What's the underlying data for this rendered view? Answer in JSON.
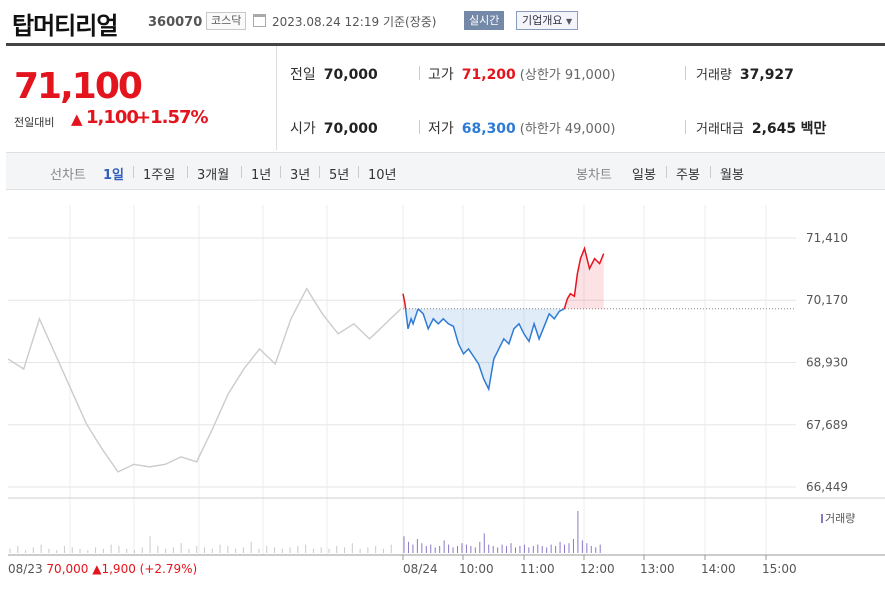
{
  "header": {
    "name": "탑머티리얼",
    "code": "360070",
    "market": "코스닥",
    "datetime": "2023.08.24 12:19",
    "basis": "기준(장중)",
    "realtime_button": "실시간",
    "company_info_button": "기업개요"
  },
  "price": {
    "current": "71,100",
    "change_label": "전일대비",
    "change_value": "1,100",
    "change_pct": "+1.57%"
  },
  "stats": {
    "prev_close": {
      "label": "전일",
      "value": "70,000"
    },
    "high": {
      "label": "고가",
      "value": "71,200",
      "limit_label": "(상한가 91,000)"
    },
    "volume": {
      "label": "거래량",
      "value": "37,927"
    },
    "open": {
      "label": "시가",
      "value": "70,000"
    },
    "low": {
      "label": "저가",
      "value": "68,300",
      "limit_label": "(하한가 49,000)"
    },
    "amount": {
      "label": "거래대금",
      "value": "2,645",
      "unit": "백만"
    }
  },
  "tabs": {
    "line_label": "선차트",
    "line_periods": [
      "1일",
      "1주일",
      "3개월",
      "1년",
      "3년",
      "5년",
      "10년"
    ],
    "active": "1일",
    "candle_label": "봉차트",
    "candle_periods": [
      "일봉",
      "주봉",
      "월봉"
    ]
  },
  "colors": {
    "up": "#e4141e",
    "down": "#2e7bd6",
    "prev": "#cccccc",
    "volume": "#8b77c7"
  },
  "chart_data": {
    "type": "line",
    "y_ticks": [
      "71,410",
      "70,170",
      "68,930",
      "67,689",
      "66,449"
    ],
    "ylim": [
      66449,
      71410
    ],
    "reference_price": 70000,
    "x_ticks": [
      "08/23",
      "08/24",
      "10:00",
      "11:00",
      "12:00",
      "13:00",
      "14:00",
      "15:00"
    ],
    "previous_day": {
      "date": "08/23",
      "close": "70,000",
      "change": "1,900",
      "change_pct": "(+2.79%)",
      "x": [
        0,
        0.04,
        0.08,
        0.12,
        0.16,
        0.2,
        0.24,
        0.28,
        0.32,
        0.36,
        0.4,
        0.44,
        0.48,
        0.52,
        0.56,
        0.6,
        0.64,
        0.68,
        0.72,
        0.76,
        0.8,
        0.84,
        0.88,
        0.92,
        0.96,
        1
      ],
      "y": [
        69000,
        68800,
        69800,
        69100,
        68400,
        67700,
        67200,
        66750,
        66900,
        66850,
        66900,
        67050,
        66950,
        67600,
        68300,
        68800,
        69200,
        68900,
        69800,
        70400,
        69900,
        69500,
        69700,
        69400,
        69700,
        70000
      ]
    },
    "today": {
      "times": [
        "09:00",
        "09:02",
        "09:05",
        "09:08",
        "09:10",
        "09:15",
        "09:20",
        "09:25",
        "09:30",
        "09:35",
        "09:40",
        "09:45",
        "09:50",
        "09:55",
        "10:00",
        "10:05",
        "10:10",
        "10:15",
        "10:20",
        "10:25",
        "10:30",
        "10:35",
        "10:40",
        "10:45",
        "10:50",
        "10:55",
        "11:00",
        "11:05",
        "11:10",
        "11:15",
        "11:20",
        "11:25",
        "11:30",
        "11:35",
        "11:40",
        "11:43",
        "11:46",
        "11:50",
        "11:53",
        "11:56",
        "12:00",
        "12:05",
        "12:10",
        "12:15",
        "12:19"
      ],
      "values": [
        70300,
        70100,
        69600,
        69800,
        69700,
        70000,
        69900,
        69600,
        69800,
        69700,
        69800,
        69700,
        69650,
        69300,
        69100,
        69200,
        69050,
        68900,
        68600,
        68400,
        69000,
        69200,
        69400,
        69300,
        69600,
        69700,
        69500,
        69350,
        69700,
        69400,
        69650,
        69900,
        69800,
        69950,
        70000,
        70200,
        70300,
        70250,
        70700,
        71000,
        71200,
        70800,
        71000,
        70900,
        71100
      ]
    },
    "volume": {
      "label": "거래량",
      "prev_day": [
        3,
        5,
        2,
        4,
        6,
        3,
        2,
        5,
        4,
        3,
        2,
        4,
        3,
        6,
        5,
        3,
        2,
        4,
        12,
        5,
        3,
        4,
        7,
        3,
        5,
        4,
        3,
        6,
        5,
        3,
        4,
        8,
        3,
        5,
        4,
        3,
        4,
        5,
        6,
        3,
        4,
        3,
        5,
        4,
        7,
        3,
        4,
        5,
        3,
        6
      ],
      "today": [
        12,
        8,
        6,
        10,
        7,
        5,
        6,
        4,
        5,
        9,
        6,
        4,
        5,
        7,
        6,
        5,
        4,
        8,
        14,
        6,
        5,
        4,
        6,
        5,
        7,
        4,
        5,
        6,
        4,
        5,
        6,
        5,
        4,
        6,
        5,
        8,
        6,
        7,
        10,
        30,
        9,
        7,
        5,
        4,
        6
      ]
    }
  }
}
